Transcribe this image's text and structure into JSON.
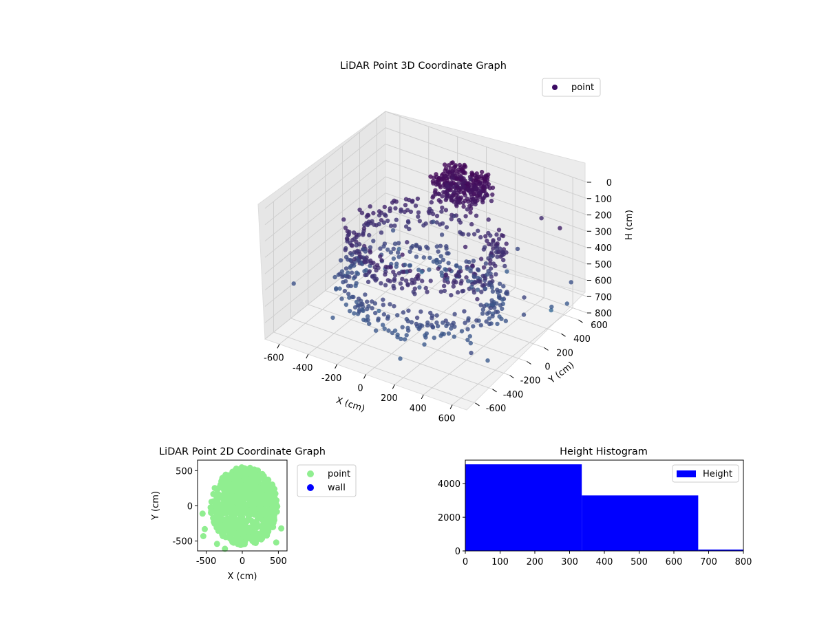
{
  "chart_data": [
    {
      "type": "scatter",
      "projection": "3d",
      "title": "LiDAR Point 3D Coordinate Graph",
      "xlabel": "X (cm)",
      "ylabel": "Y (cm)",
      "zlabel": "H (cm)",
      "xlim": [
        -700,
        700
      ],
      "ylim": [
        -700,
        700
      ],
      "zlim": [
        800,
        0
      ],
      "x_ticks": [
        "-600",
        "-400",
        "-200",
        "0",
        "200",
        "400",
        "600"
      ],
      "y_ticks": [
        "-600",
        "-400",
        "-200",
        "0",
        "200",
        "400",
        "600"
      ],
      "z_ticks": [
        "0",
        "100",
        "200",
        "300",
        "400",
        "500",
        "600",
        "700",
        "800"
      ],
      "z_inverted": true,
      "grid": true,
      "legend": {
        "position": "top-right",
        "entries": [
          "point"
        ]
      },
      "colormap": "viridis (by height)",
      "colors": {
        "point": "#440154",
        "legend_marker": "#3b0a63"
      },
      "structures": [
        {
          "name": "upper cluster",
          "x_range": [
            -150,
            150
          ],
          "y_range": [
            300,
            550
          ],
          "h_range": [
            50,
            200
          ]
        },
        {
          "name": "ring",
          "x_range": [
            -500,
            500
          ],
          "y_range": [
            -450,
            450
          ],
          "h_range": [
            250,
            400
          ]
        },
        {
          "name": "lower arc",
          "x_range": [
            -550,
            550
          ],
          "y_range": [
            -500,
            400
          ],
          "h_range": [
            480,
            650
          ]
        }
      ]
    },
    {
      "type": "scatter",
      "title": "LiDAR Point 2D Coordinate Graph",
      "xlabel": "X (cm)",
      "ylabel": "Y (cm)",
      "xlim": [
        -620,
        620
      ],
      "ylim": [
        -640,
        650
      ],
      "x_ticks": [
        -500,
        0,
        500
      ],
      "y_ticks": [
        -500,
        0,
        500
      ],
      "series": [
        {
          "name": "point",
          "color": "#90ee90",
          "main_cluster": {
            "x_range": [
              -440,
              500
            ],
            "y_range": [
              -560,
              550
            ]
          },
          "outliers": [
            [
              -550,
              -110
            ],
            [
              -520,
              -330
            ],
            [
              -540,
              -430
            ],
            [
              -350,
              -540
            ],
            [
              -240,
              -610
            ],
            [
              -150,
              -480
            ],
            [
              540,
              -320
            ],
            [
              470,
              -520
            ],
            [
              -230,
              250
            ]
          ]
        },
        {
          "name": "wall",
          "color": "#0000ff",
          "points": []
        }
      ],
      "legend": {
        "position": "outside-right",
        "entries": [
          "point",
          "wall"
        ]
      }
    },
    {
      "type": "bar",
      "title": "Height Histogram",
      "xlabel": "",
      "ylabel": "",
      "bins": [
        [
          0,
          335
        ],
        [
          335,
          670
        ],
        [
          670,
          1005
        ]
      ],
      "values": [
        5150,
        3300,
        80
      ],
      "series": [
        {
          "name": "Height",
          "values": [
            5150,
            3300,
            80
          ]
        }
      ],
      "color": "#0000ff",
      "xlim": [
        0,
        800
      ],
      "ylim": [
        0,
        5400
      ],
      "x_ticks": [
        0,
        100,
        200,
        300,
        400,
        500,
        600,
        700,
        800
      ],
      "y_ticks": [
        0,
        2000,
        4000
      ],
      "legend": {
        "position": "top-right",
        "entries": [
          "Height"
        ]
      }
    }
  ]
}
